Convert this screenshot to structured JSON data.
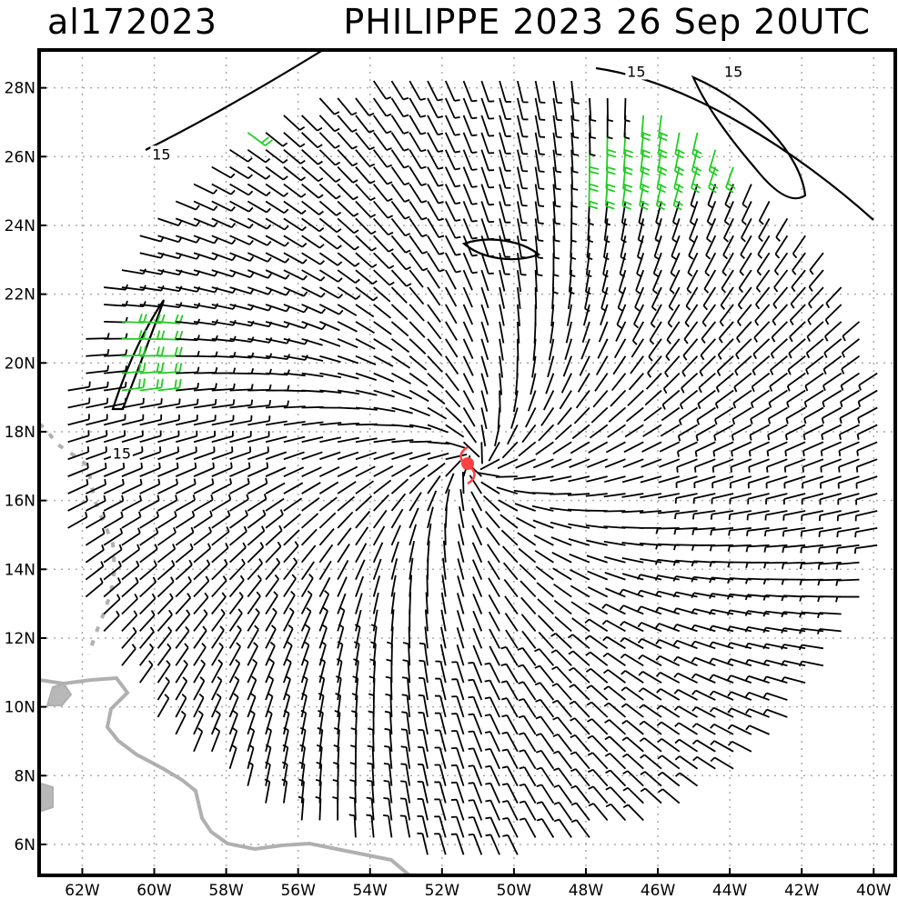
{
  "title": {
    "storm_id": "al172023",
    "storm_time": "PHILIPPE 2023 26 Sep 20UTC"
  },
  "axes": {
    "lat_labels": [
      "28N",
      "26N",
      "24N",
      "22N",
      "20N",
      "18N",
      "16N",
      "14N",
      "12N",
      "10N",
      "8N",
      "6N"
    ],
    "lon_labels": [
      "62W",
      "60W",
      "58W",
      "56W",
      "54W",
      "52W",
      "50W",
      "48W",
      "46W",
      "44W",
      "42W",
      "40W"
    ],
    "lon_range": [
      -63.2,
      -39.4
    ],
    "lat_range": [
      5.1,
      29.1
    ],
    "grid": "dotted"
  },
  "storm_center": {
    "lon": -51.1,
    "lat": 17.1,
    "symbol": "tropical-cyclone",
    "color": "#ff4040"
  },
  "contour_labels": [
    {
      "text": "15",
      "lon": -59.8,
      "lat": 26.0
    },
    {
      "text": "15",
      "lon": -60.9,
      "lat": 17.3
    },
    {
      "text": "15",
      "lon": -46.6,
      "lat": 28.4
    },
    {
      "text": "15",
      "lon": -43.9,
      "lat": 28.4
    }
  ],
  "contour_value_kt": 15,
  "colors": {
    "barb_normal": "#000000",
    "barb_strong": "#22cc22",
    "land": "#b0b0b0",
    "grid": "#aaaaaa",
    "storm": "#ff4040"
  },
  "wind_field": {
    "type": "barbs",
    "units": "kt",
    "analysis_radius_deg": 11.5
  }
}
